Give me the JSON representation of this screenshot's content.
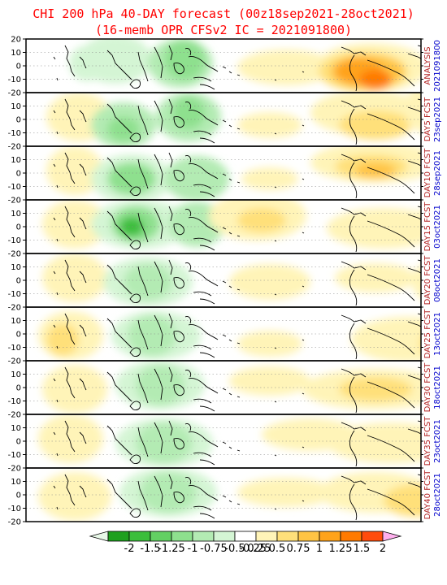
{
  "title": {
    "line1": "CHI 200 hPa 40-DAY forecast (00z18sep2021-28oct2021)",
    "line2": "(16-memb OPR CFSv2 IC = 2021091800)"
  },
  "y_ticks": [
    "20",
    "10",
    "0",
    "-10",
    "-20"
  ],
  "panels": [
    {
      "label": "ANALYSIS",
      "date": "2021091800"
    },
    {
      "label": "DAY5 FCST",
      "date": "23sep2021"
    },
    {
      "label": "DAY10 FCST",
      "date": "28sep2021"
    },
    {
      "label": "DAY15 FCST",
      "date": "03oct2021"
    },
    {
      "label": "DAY20 FCST",
      "date": "08oct2021"
    },
    {
      "label": "DAY25 FCST",
      "date": "13oct2021"
    },
    {
      "label": "DAY30 FCST",
      "date": "18oct2021"
    },
    {
      "label": "DAY35 FCST",
      "date": "23oct2021"
    },
    {
      "label": "DAY40 FCST",
      "date": "28oct2021"
    }
  ],
  "colorbar": {
    "labels": [
      "-2",
      "-1.5",
      "-1.25",
      "-1",
      "-0.75",
      "-0.5",
      "-0.25",
      "0.25",
      "0.5",
      "0.75",
      "1",
      "1.25",
      "1.5",
      "2"
    ],
    "colors": [
      "#1fa01f",
      "#3cbe3c",
      "#63d063",
      "#8ee08e",
      "#b3ebb3",
      "#d4f5d4",
      "#ffffff",
      "#fff4b8",
      "#ffe07a",
      "#ffc444",
      "#ffa31a",
      "#ff7a00",
      "#ff4c0c"
    ],
    "low_color": "#e8f8e8",
    "high_color": "#ffb0ee"
  },
  "colors": {
    "title": "#ff0000",
    "panel_label": "#b22222",
    "panel_date": "#0000cc"
  }
}
